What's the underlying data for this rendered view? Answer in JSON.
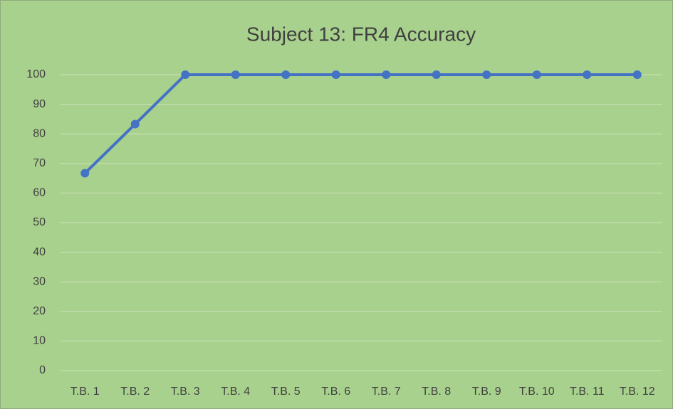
{
  "chart_data": {
    "type": "line",
    "title": "Subject 13: FR4 Accuracy",
    "categories": [
      "T.B. 1",
      "T.B. 2",
      "T.B. 3",
      "T.B. 4",
      "T.B. 5",
      "T.B. 6",
      "T.B. 7",
      "T.B. 8",
      "T.B. 9",
      "T.B. 10",
      "T.B. 11",
      "T.B. 12"
    ],
    "values": [
      66.7,
      83.3,
      100,
      100,
      100,
      100,
      100,
      100,
      100,
      100,
      100,
      100
    ],
    "color": "#4472c4",
    "ylim": [
      0,
      100
    ],
    "yticks": [
      0,
      10,
      20,
      30,
      40,
      50,
      60,
      70,
      80,
      90,
      100
    ],
    "grid": true
  }
}
